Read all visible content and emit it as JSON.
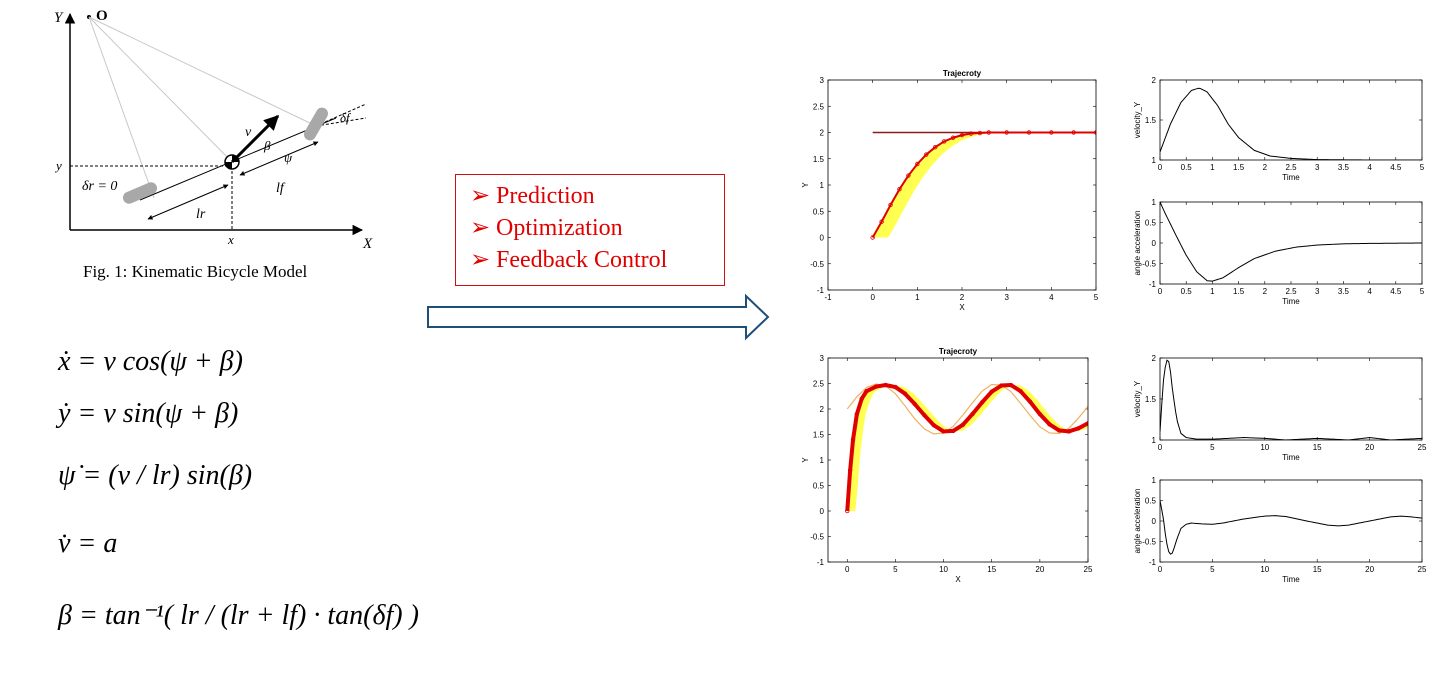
{
  "bicycle_figure": {
    "caption": "Fig. 1: Kinematic Bicycle Model",
    "labels": {
      "y_axis": "Y",
      "origin": "O",
      "x_axis": "X",
      "y_tick": "y",
      "x_tick": "x",
      "v": "v",
      "beta": "β",
      "psi": "ψ",
      "delta_f": "δf",
      "delta_r": "δr = 0",
      "l_f": "lf",
      "l_r": "lr"
    }
  },
  "equations": {
    "x_dot": "ẋ = v cos(ψ + β)",
    "y_dot": "ẏ = v sin(ψ + β)",
    "psi_dot": "ψ̇ = (v / lr) sin(β)",
    "v_dot": "v̇ = a",
    "beta": "β = tan⁻¹( lr / (lr + lf) · tan(δf) )"
  },
  "control_box": {
    "items": [
      "Prediction",
      "Optimization",
      "Feedback Control"
    ],
    "bullet": "➢"
  },
  "colors": {
    "accent_red": "#e00000",
    "arrow_blue": "#1f4e79",
    "reference_line": "#8b1a1a",
    "prediction_yellow": "#ffff33",
    "reference_orange": "#f0b060"
  },
  "chart_data": [
    {
      "type": "line",
      "title": "Trajecroty",
      "xlabel": "X",
      "ylabel": "Y",
      "xlim": [
        -1,
        5
      ],
      "ylim": [
        -1,
        3
      ],
      "xticks": [
        -1,
        0,
        1,
        2,
        3,
        4,
        5
      ],
      "yticks": [
        -1,
        -0.5,
        0,
        0.5,
        1,
        1.5,
        2,
        2.5,
        3
      ],
      "series": [
        {
          "values": "reference",
          "x": [
            0,
            5
          ],
          "y": [
            2,
            2
          ]
        },
        {
          "values": "trajectory",
          "x": [
            0,
            0.2,
            0.4,
            0.6,
            0.8,
            1.0,
            1.2,
            1.4,
            1.6,
            1.8,
            2.0,
            2.2,
            2.4,
            2.6,
            3.0,
            3.5,
            4.0,
            4.5,
            5.0
          ],
          "y": [
            0,
            0.3,
            0.62,
            0.92,
            1.18,
            1.4,
            1.58,
            1.72,
            1.83,
            1.9,
            1.95,
            1.98,
            1.99,
            2.0,
            2.0,
            2.0,
            2.0,
            2.0,
            2.0
          ]
        }
      ]
    },
    {
      "type": "line",
      "title": "",
      "xlabel": "Time",
      "ylabel": "velocity_Y",
      "xlim": [
        0,
        5
      ],
      "ylim": [
        1,
        2
      ],
      "xticks": [
        0,
        0.5,
        1,
        1.5,
        2,
        2.5,
        3,
        3.5,
        4,
        4.5,
        5
      ],
      "yticks": [
        1,
        1.5,
        2
      ],
      "series": [
        {
          "x": [
            0,
            0.2,
            0.4,
            0.6,
            0.75,
            0.9,
            1.1,
            1.3,
            1.5,
            1.8,
            2.1,
            2.5,
            3.0,
            4.0,
            5.0
          ],
          "y": [
            1.1,
            1.45,
            1.72,
            1.87,
            1.9,
            1.85,
            1.68,
            1.45,
            1.28,
            1.12,
            1.05,
            1.02,
            1.005,
            1.0,
            1.0
          ]
        }
      ]
    },
    {
      "type": "line",
      "title": "",
      "xlabel": "Time",
      "ylabel": "angle acceleration",
      "xlim": [
        0,
        5
      ],
      "ylim": [
        -1,
        1
      ],
      "xticks": [
        0,
        0.5,
        1,
        1.5,
        2,
        2.5,
        3,
        3.5,
        4,
        4.5,
        5
      ],
      "yticks": [
        -1,
        -0.5,
        0,
        0.5,
        1
      ],
      "series": [
        {
          "x": [
            0,
            0.1,
            0.3,
            0.5,
            0.7,
            0.9,
            1.0,
            1.2,
            1.5,
            1.8,
            2.2,
            2.6,
            3.0,
            3.5,
            4.0,
            5.0
          ],
          "y": [
            1.0,
            0.72,
            0.2,
            -0.3,
            -0.7,
            -0.92,
            -0.93,
            -0.85,
            -0.6,
            -0.38,
            -0.2,
            -0.1,
            -0.05,
            -0.02,
            -0.01,
            0.0
          ]
        }
      ]
    },
    {
      "type": "line",
      "title": "Trajecroty",
      "xlabel": "X",
      "ylabel": "Y",
      "xlim": [
        -2,
        25
      ],
      "ylim": [
        -1,
        3
      ],
      "xticks": [
        0,
        5,
        10,
        15,
        20,
        25
      ],
      "yticks": [
        -1,
        -0.5,
        0,
        0.5,
        1,
        1.5,
        2,
        2.5,
        3
      ],
      "series": [
        {
          "values": "reference_sine",
          "x": [
            0,
            1,
            2,
            3,
            4,
            5,
            6,
            7,
            8,
            9,
            10,
            11,
            12,
            13,
            14,
            15,
            16,
            17,
            18,
            19,
            20,
            21,
            22,
            23,
            24,
            25
          ],
          "y": [
            2.0,
            2.24,
            2.42,
            2.49,
            2.45,
            2.3,
            2.06,
            1.81,
            1.61,
            1.51,
            1.53,
            1.66,
            1.88,
            2.12,
            2.35,
            2.48,
            2.47,
            2.34,
            2.11,
            1.87,
            1.65,
            1.53,
            1.52,
            1.62,
            1.82,
            2.05
          ]
        },
        {
          "values": "trajectory",
          "x": [
            0,
            0.3,
            0.6,
            1,
            1.5,
            2,
            3,
            4,
            5,
            6,
            7,
            8,
            9,
            10,
            11,
            12,
            13,
            14,
            15,
            16,
            17,
            18,
            19,
            20,
            21,
            22,
            23,
            24,
            25
          ],
          "y": [
            0,
            0.8,
            1.4,
            1.9,
            2.2,
            2.35,
            2.44,
            2.47,
            2.43,
            2.3,
            2.1,
            1.88,
            1.68,
            1.56,
            1.57,
            1.69,
            1.9,
            2.13,
            2.34,
            2.46,
            2.47,
            2.35,
            2.14,
            1.9,
            1.7,
            1.58,
            1.56,
            1.62,
            1.72
          ]
        }
      ]
    },
    {
      "type": "line",
      "title": "",
      "xlabel": "Time",
      "ylabel": "velocity_Y",
      "xlim": [
        0,
        25
      ],
      "ylim": [
        1,
        2
      ],
      "xticks": [
        0,
        5,
        10,
        15,
        20,
        25
      ],
      "yticks": [
        1,
        1.5,
        2
      ],
      "series": [
        {
          "x": [
            0,
            0.3,
            0.6,
            0.9,
            1.2,
            1.6,
            2.0,
            2.5,
            3.5,
            5,
            8,
            10,
            12,
            15,
            18,
            20,
            22,
            25
          ],
          "y": [
            1.1,
            1.7,
            1.98,
            1.95,
            1.6,
            1.25,
            1.08,
            1.03,
            1.01,
            1.01,
            1.03,
            1.02,
            1.0,
            1.02,
            1.0,
            1.03,
            1.0,
            1.02
          ]
        }
      ]
    },
    {
      "type": "line",
      "title": "",
      "xlabel": "Time",
      "ylabel": "angle acceleration",
      "xlim": [
        0,
        25
      ],
      "ylim": [
        -1,
        1
      ],
      "xticks": [
        0,
        5,
        10,
        15,
        20,
        25
      ],
      "yticks": [
        -1,
        -0.5,
        0,
        0.5,
        1
      ],
      "series": [
        {
          "x": [
            0,
            0.3,
            0.6,
            0.9,
            1.2,
            1.6,
            2.0,
            2.5,
            3.0,
            4,
            5,
            6,
            8,
            10,
            11,
            12,
            14,
            16,
            17,
            18,
            20,
            22,
            23,
            24,
            25
          ],
          "y": [
            0.5,
            0.1,
            -0.5,
            -0.82,
            -0.78,
            -0.45,
            -0.18,
            -0.08,
            -0.05,
            -0.07,
            -0.08,
            -0.05,
            0.05,
            0.12,
            0.13,
            0.11,
            0.0,
            -0.1,
            -0.12,
            -0.1,
            0.0,
            0.1,
            0.12,
            0.1,
            0.07
          ]
        }
      ]
    }
  ]
}
